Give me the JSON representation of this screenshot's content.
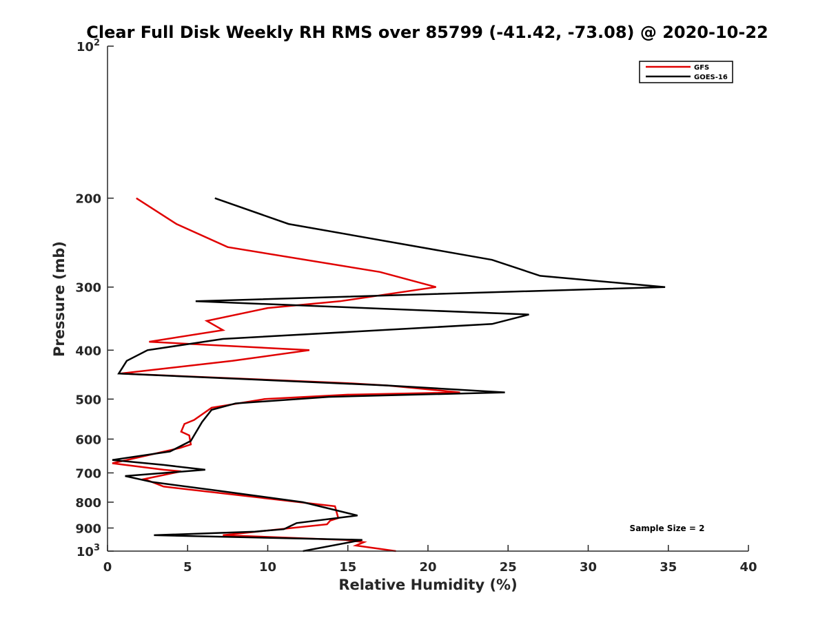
{
  "chart_data": {
    "type": "line",
    "title": "Clear Full Disk Weekly RH RMS over 85799 (-41.42, -73.08) @ 2020-10-22",
    "xlabel": "Relative Humidity (%)",
    "ylabel": "Pressure (mb)",
    "xlim": [
      0,
      40
    ],
    "ylim": [
      100,
      1000
    ],
    "y_scale": "log",
    "y_reversed": true,
    "grid": false,
    "legend_position": "top-right",
    "x_ticks": [
      {
        "value": 0,
        "label": "0"
      },
      {
        "value": 5,
        "label": "5"
      },
      {
        "value": 10,
        "label": "10"
      },
      {
        "value": 15,
        "label": "15"
      },
      {
        "value": 20,
        "label": "20"
      },
      {
        "value": 25,
        "label": "25"
      },
      {
        "value": 30,
        "label": "30"
      },
      {
        "value": 35,
        "label": "35"
      },
      {
        "value": 40,
        "label": "40"
      }
    ],
    "y_ticks": [
      {
        "value": 100,
        "base": "10",
        "exp": "2"
      },
      {
        "value": 200,
        "label": "200"
      },
      {
        "value": 300,
        "label": "300"
      },
      {
        "value": 400,
        "label": "400"
      },
      {
        "value": 500,
        "label": "500"
      },
      {
        "value": 600,
        "label": "600"
      },
      {
        "value": 700,
        "label": "700"
      },
      {
        "value": 800,
        "label": "800"
      },
      {
        "value": 900,
        "label": "900"
      },
      {
        "value": 1000,
        "base": "10",
        "exp": "3"
      }
    ],
    "annotation": "Sample Size = 2",
    "series": [
      {
        "name": "GFS",
        "color": "#e00000",
        "points": [
          [
            1.8,
            200
          ],
          [
            4.3,
            225
          ],
          [
            7.5,
            250
          ],
          [
            17,
            280
          ],
          [
            20.5,
            300
          ],
          [
            14.5,
            320
          ],
          [
            10,
            330
          ],
          [
            6.2,
            350
          ],
          [
            7.2,
            365
          ],
          [
            2.6,
            385
          ],
          [
            12.6,
            400
          ],
          [
            7.8,
            420
          ],
          [
            0.8,
            445
          ],
          [
            15,
            465
          ],
          [
            17.5,
            470
          ],
          [
            22,
            485
          ],
          [
            15,
            490
          ],
          [
            9.8,
            500
          ],
          [
            6.5,
            520
          ],
          [
            5.4,
            550
          ],
          [
            4.8,
            560
          ],
          [
            4.6,
            580
          ],
          [
            5.1,
            590
          ],
          [
            5.2,
            615
          ],
          [
            4.5,
            625
          ],
          [
            0.3,
            670
          ],
          [
            3.5,
            690
          ],
          [
            4.6,
            695
          ],
          [
            2.3,
            720
          ],
          [
            3.5,
            745
          ],
          [
            10.5,
            790
          ],
          [
            14.2,
            815
          ],
          [
            14.4,
            860
          ],
          [
            13.9,
            870
          ],
          [
            13.7,
            885
          ],
          [
            7.2,
            930
          ],
          [
            14.8,
            950
          ],
          [
            16,
            960
          ],
          [
            15.5,
            975
          ],
          [
            18,
            1000
          ]
        ]
      },
      {
        "name": "GOES-16",
        "color": "#000000",
        "points": [
          [
            6.7,
            200
          ],
          [
            11.3,
            225
          ],
          [
            24,
            265
          ],
          [
            27,
            285
          ],
          [
            34.8,
            300
          ],
          [
            5.5,
            320
          ],
          [
            26.3,
            340
          ],
          [
            24,
            355
          ],
          [
            7.2,
            380
          ],
          [
            2.5,
            400
          ],
          [
            1.2,
            420
          ],
          [
            0.7,
            445
          ],
          [
            17.5,
            470
          ],
          [
            24.8,
            485
          ],
          [
            13.8,
            495
          ],
          [
            8,
            510
          ],
          [
            6.5,
            525
          ],
          [
            5.9,
            555
          ],
          [
            5.2,
            605
          ],
          [
            3.9,
            635
          ],
          [
            0.3,
            660
          ],
          [
            3.5,
            675
          ],
          [
            6.1,
            690
          ],
          [
            1.1,
            710
          ],
          [
            2.8,
            730
          ],
          [
            7,
            760
          ],
          [
            12.2,
            800
          ],
          [
            15.6,
            850
          ],
          [
            11.8,
            880
          ],
          [
            11,
            905
          ],
          [
            9.2,
            915
          ],
          [
            2.9,
            930
          ],
          [
            15.9,
            950
          ],
          [
            12.2,
            1000
          ]
        ]
      }
    ]
  }
}
